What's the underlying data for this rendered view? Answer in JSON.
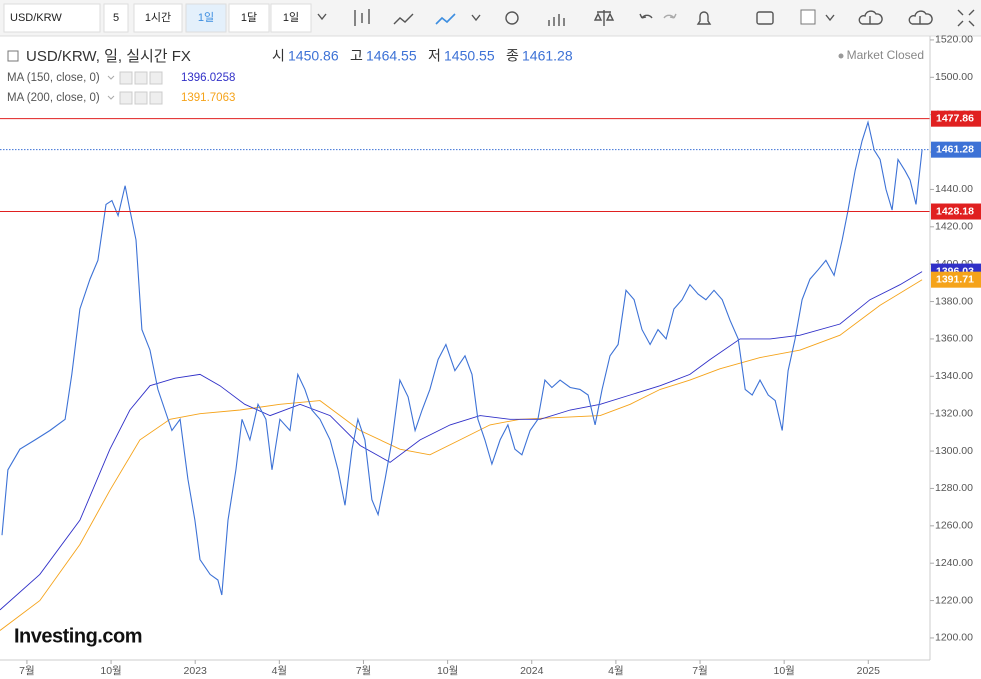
{
  "toolbar": {
    "symbol": "USD/KRW",
    "buttons": [
      "5",
      "1시간",
      "1일",
      "1달",
      "1일"
    ],
    "active": 2
  },
  "legend": {
    "title": "USD/KRW, 일, 실시간 FX",
    "ohlc": [
      {
        "label": "시",
        "value": "1450.86"
      },
      {
        "label": "고",
        "value": "1464.55"
      },
      {
        "label": "저",
        "value": "1450.55"
      },
      {
        "label": "종",
        "value": "1461.28"
      }
    ],
    "status": "Market Closed",
    "studies": [
      {
        "name": "MA (150, close, 0)",
        "value": "1396.0258"
      },
      {
        "name": "MA (200, close, 0)",
        "value": "1391.7063"
      }
    ]
  },
  "logo": "Investing.com",
  "chart_data": {
    "type": "line",
    "xlim": [
      -0.96,
      32.2
    ],
    "xticks": [
      {
        "value": 0,
        "label": "7월"
      },
      {
        "value": 3,
        "label": "10월"
      },
      {
        "value": 6,
        "label": "2023"
      },
      {
        "value": 9,
        "label": "4월"
      },
      {
        "value": 12,
        "label": "7월"
      },
      {
        "value": 15,
        "label": "10월"
      },
      {
        "value": 18,
        "label": "2024"
      },
      {
        "value": 21,
        "label": "4월"
      },
      {
        "value": 24,
        "label": "7월"
      },
      {
        "value": 27,
        "label": "10월"
      },
      {
        "value": 30,
        "label": "2025"
      }
    ],
    "ylim": [
      1188.2,
      1522.1
    ],
    "yticks": [
      {
        "value": 1200,
        "label": "1200.00"
      },
      {
        "value": 1220,
        "label": "1220.00"
      },
      {
        "value": 1240,
        "label": "1240.00"
      },
      {
        "value": 1260,
        "label": "1260.00"
      },
      {
        "value": 1280,
        "label": "1280.00"
      },
      {
        "value": 1300,
        "label": "1300.00"
      },
      {
        "value": 1320,
        "label": "1320.00"
      },
      {
        "value": 1340,
        "label": "1340.00"
      },
      {
        "value": 1360,
        "label": "1360.00"
      },
      {
        "value": 1380,
        "label": "1380.00"
      },
      {
        "value": 1400,
        "label": "1400.00"
      },
      {
        "value": 1420,
        "label": "1420.00"
      },
      {
        "value": 1440,
        "label": "1440.00"
      },
      {
        "value": 1460,
        "label": "1460.00"
      },
      {
        "value": 1480,
        "label": "1480.00"
      },
      {
        "value": 1500,
        "label": "1500.00"
      },
      {
        "value": 1520,
        "label": "1520.00"
      }
    ],
    "series": [
      {
        "name": "USD/KRW",
        "color": "#3d72d6",
        "x": [
          -0.89,
          -0.68,
          -0.25,
          0.29,
          0.82,
          1.36,
          1.6,
          1.89,
          2.25,
          2.53,
          2.82,
          3.03,
          3.25,
          3.5,
          3.67,
          3.89,
          4.1,
          4.39,
          4.67,
          4.92,
          5.17,
          5.46,
          5.74,
          5.99,
          6.17,
          6.53,
          6.81,
          6.95,
          7.17,
          7.45,
          7.67,
          7.95,
          8.24,
          8.52,
          8.74,
          9.02,
          9.38,
          9.66,
          9.91,
          10.16,
          10.45,
          10.81,
          11.09,
          11.34,
          11.59,
          11.8,
          12.05,
          12.3,
          12.52,
          12.77,
          13.02,
          13.3,
          13.59,
          13.84,
          14.09,
          14.37,
          14.66,
          14.94,
          15.26,
          15.62,
          15.87,
          16.08,
          16.33,
          16.58,
          16.87,
          17.15,
          17.4,
          17.65,
          17.94,
          18.22,
          18.47,
          18.72,
          19.01,
          19.37,
          19.72,
          20.01,
          20.26,
          20.51,
          20.79,
          21.08,
          21.36,
          21.65,
          21.93,
          22.22,
          22.5,
          22.79,
          23.07,
          23.36,
          23.64,
          23.93,
          24.21,
          24.5,
          24.79,
          25.07,
          25.36,
          25.61,
          25.86,
          26.14,
          26.43,
          26.68,
          26.93,
          27.14,
          27.39,
          27.64,
          27.92,
          28.21,
          28.49,
          28.78,
          29.07,
          29.28,
          29.53,
          29.78,
          29.99,
          30.21,
          30.42,
          30.63,
          30.85,
          31.06,
          31.31,
          31.49,
          31.7,
          31.92
        ],
        "values": [
          1255,
          1290,
          1301,
          1306,
          1311,
          1317,
          1341,
          1376,
          1392,
          1402,
          1432,
          1434,
          1426,
          1442,
          1429,
          1413,
          1365,
          1354,
          1333,
          1322,
          1311,
          1317,
          1285,
          1263,
          1242,
          1234,
          1231,
          1223,
          1263,
          1290,
          1317,
          1306,
          1325,
          1317,
          1290,
          1317,
          1311,
          1341,
          1333,
          1322,
          1317,
          1306,
          1290,
          1271,
          1301,
          1317,
          1306,
          1274,
          1266,
          1285,
          1306,
          1338,
          1329,
          1311,
          1322,
          1333,
          1349,
          1357,
          1343,
          1351,
          1341,
          1317,
          1306,
          1293,
          1306,
          1314,
          1301,
          1298,
          1311,
          1317,
          1338,
          1334,
          1338,
          1334,
          1333,
          1330,
          1314,
          1333,
          1351,
          1357,
          1386,
          1381,
          1365,
          1357,
          1365,
          1360,
          1376,
          1381,
          1389,
          1384,
          1381,
          1386,
          1381,
          1370,
          1360,
          1333,
          1330,
          1338,
          1330,
          1327,
          1311,
          1343,
          1360,
          1381,
          1392,
          1397,
          1402,
          1394,
          1413,
          1429,
          1450,
          1466,
          1476,
          1461,
          1456,
          1440,
          1429,
          1456,
          1450,
          1445,
          1432,
          1461.28
        ]
      },
      {
        "name": "MA (150, close, 0)",
        "color": "#3030c8",
        "last_label": "1396.03",
        "x": [
          -0.96,
          0.46,
          1.89,
          2.96,
          3.67,
          4.39,
          5.28,
          6.17,
          6.88,
          7.77,
          8.67,
          9.74,
          10.81,
          11.88,
          12.95,
          14.02,
          15.09,
          16.16,
          17.23,
          18.3,
          19.37,
          20.44,
          21.51,
          22.58,
          23.64,
          24.36,
          25.43,
          26.5,
          27.57,
          28.99,
          30.06,
          31.13,
          31.92
        ],
        "values": [
          1215,
          1234,
          1263,
          1301,
          1322,
          1335,
          1339,
          1341,
          1335,
          1325,
          1319,
          1325,
          1319,
          1303,
          1294,
          1306,
          1314,
          1319,
          1317,
          1317,
          1322,
          1325,
          1330,
          1335,
          1341,
          1349,
          1360,
          1360,
          1362,
          1368,
          1381,
          1389,
          1396.03
        ]
      },
      {
        "name": "MA (200, close, 0)",
        "color": "#f5a31a",
        "last_label": "1391.71",
        "x": [
          -0.96,
          0.46,
          1.89,
          2.96,
          4.03,
          5.1,
          6.17,
          7.6,
          9.02,
          10.45,
          11.88,
          13.3,
          14.37,
          15.44,
          16.51,
          17.58,
          19.01,
          20.44,
          21.51,
          22.58,
          23.64,
          24.71,
          26.14,
          27.57,
          28.99,
          30.42,
          31.92
        ],
        "values": [
          1204,
          1220,
          1250,
          1279,
          1306,
          1317,
          1320,
          1322,
          1325,
          1327,
          1311,
          1301,
          1298,
          1306,
          1314,
          1317,
          1318,
          1319,
          1325,
          1333,
          1338,
          1344,
          1350,
          1354,
          1362,
          1378,
          1391.71
        ]
      }
    ],
    "lines": [
      {
        "value": 1477.86,
        "color": "#e02020",
        "style": "solid"
      },
      {
        "value": 1461.28,
        "color": "#3d72d6",
        "style": "dotted"
      },
      {
        "value": 1428.18,
        "color": "#e02020",
        "style": "solid"
      }
    ]
  }
}
